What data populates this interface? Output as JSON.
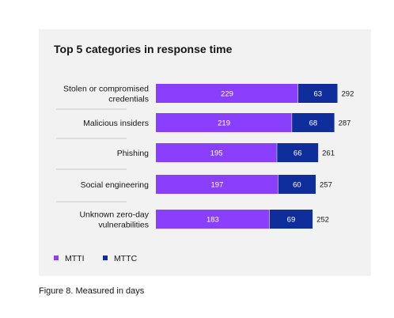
{
  "chart_data": {
    "type": "bar",
    "orientation": "horizontal",
    "stacked": true,
    "title": "Top 5 categories in response time",
    "categories": [
      [
        "Stolen or compromised",
        "credentials"
      ],
      [
        "Malicious insiders"
      ],
      [
        "Phishing"
      ],
      [
        "Social engineering"
      ],
      [
        "Unknown zero-day",
        "vulnerabilities"
      ]
    ],
    "series": [
      {
        "name": "MTTI",
        "values": [
          229,
          219,
          195,
          197,
          183
        ],
        "color": "#8a3ffc"
      },
      {
        "name": "MTTC",
        "values": [
          63,
          68,
          66,
          60,
          69
        ],
        "color": "#0f2e9c"
      }
    ],
    "totals": [
      292,
      287,
      261,
      257,
      252
    ],
    "legend": "bottom-left",
    "grid": false
  },
  "caption": "Figure 8. Measured in days"
}
